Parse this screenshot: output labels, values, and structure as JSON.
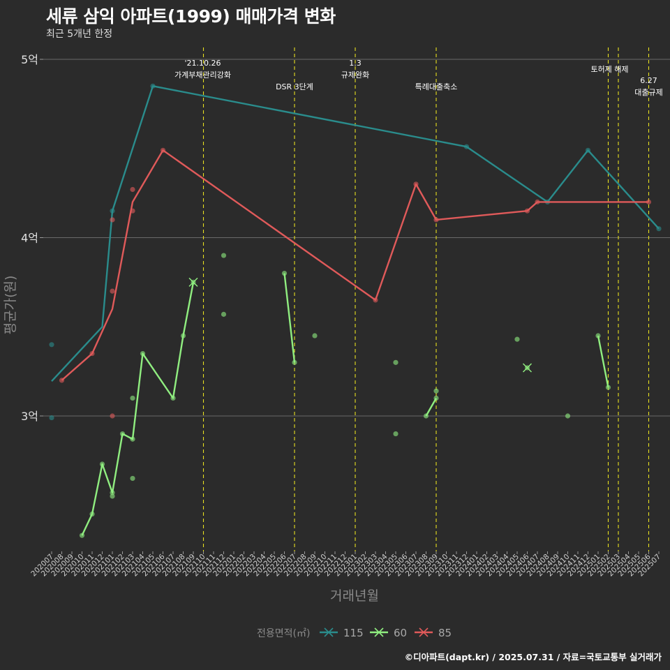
{
  "title": "세류 삼익 아파트(1999) 매매가격 변화",
  "subtitle": "최근 5개년 한정",
  "footer": "©디아파트(dapt.kr) / 2025.07.31 / 자료=국토교통부 실거래가",
  "chart_data": {
    "type": "line",
    "xlabel": "거래년월",
    "ylabel": "평균가(원)",
    "ylim": [
      22000,
      50000
    ],
    "yticks": [
      {
        "value": 30000,
        "label": "3억"
      },
      {
        "value": 40000,
        "label": "4억"
      },
      {
        "value": 50000,
        "label": "5억"
      }
    ],
    "categories": [
      "202007",
      "202008",
      "202009",
      "202010",
      "202011",
      "202012",
      "202101",
      "202102",
      "202103",
      "202104",
      "202105",
      "202106",
      "202107",
      "202108",
      "202109",
      "202110",
      "202111",
      "202112",
      "202201",
      "202202",
      "202203",
      "202204",
      "202205",
      "202206",
      "202207",
      "202208",
      "202209",
      "202210",
      "202211",
      "202212",
      "202301",
      "202302",
      "202303",
      "202304",
      "202305",
      "202306",
      "202307",
      "202308",
      "202309",
      "202310",
      "202311",
      "202312",
      "202401",
      "202402",
      "202403",
      "202404",
      "202405",
      "202406",
      "202407",
      "202408",
      "202409",
      "202410",
      "202411",
      "202412",
      "202501",
      "202502",
      "202503",
      "202504",
      "202505",
      "202506",
      "202507"
    ],
    "legend_title": "전용면적(㎡)",
    "legend_position": "bottom",
    "grid": true,
    "series": [
      {
        "name": "115",
        "color": "#2a8c8c",
        "line": [
          [
            "202007",
            31950
          ],
          [
            "202012",
            35000
          ],
          [
            "202101",
            41500
          ],
          [
            "202105",
            48500
          ],
          [
            "202312",
            45100
          ],
          [
            "202408",
            42000
          ],
          [
            "202412",
            44900
          ],
          [
            "202507",
            40500
          ]
        ],
        "points": [
          [
            "202007",
            34000
          ],
          [
            "202007",
            29900
          ],
          [
            "202101",
            41500
          ],
          [
            "202105",
            48500
          ],
          [
            "202312",
            45100
          ],
          [
            "202408",
            42000
          ],
          [
            "202412",
            44900
          ],
          [
            "202507",
            40500
          ]
        ]
      },
      {
        "name": "60",
        "color": "#90ee80",
        "line": [
          [
            [
              "202010",
              23300
            ],
            [
              "202011",
              24500
            ],
            [
              "202012",
              27300
            ],
            [
              "202101",
              25700
            ],
            [
              "202102",
              29000
            ],
            [
              "202103",
              28700
            ],
            [
              "202104",
              33500
            ],
            [
              "202107",
              31000
            ],
            [
              "202108",
              34500
            ],
            [
              "202109",
              37500
            ]
          ],
          [
            [
              "202206",
              38000
            ],
            [
              "202207",
              33000
            ]
          ],
          [
            [
              "202308",
              30000
            ],
            [
              "202309",
              31000
            ]
          ],
          [
            [
              "202501",
              34500
            ],
            [
              "202502",
              31600
            ]
          ]
        ],
        "points": [
          [
            "202010",
            23300
          ],
          [
            "202011",
            24500
          ],
          [
            "202012",
            27300
          ],
          [
            "202101",
            25700
          ],
          [
            "202101",
            25500
          ],
          [
            "202102",
            29000
          ],
          [
            "202103",
            28700
          ],
          [
            "202103",
            31000
          ],
          [
            "202103",
            26500
          ],
          [
            "202104",
            33500
          ],
          [
            "202107",
            31000
          ],
          [
            "202108",
            34500
          ],
          [
            "202109",
            37500
          ],
          [
            "202112",
            39000
          ],
          [
            "202112",
            35700
          ],
          [
            "202206",
            38000
          ],
          [
            "202207",
            33000
          ],
          [
            "202209",
            34500
          ],
          [
            "202305",
            33000
          ],
          [
            "202305",
            29000
          ],
          [
            "202308",
            30000
          ],
          [
            "202309",
            31000
          ],
          [
            "202309",
            31400
          ],
          [
            "202405",
            34300
          ],
          [
            "202406",
            32700
          ],
          [
            "202410",
            30000
          ],
          [
            "202501",
            34500
          ],
          [
            "202502",
            31600
          ]
        ],
        "markers_x": [
          [
            "202109",
            37500
          ],
          [
            "202406",
            32700
          ]
        ]
      },
      {
        "name": "85",
        "color": "#e05a5a",
        "line": [
          [
            "202008",
            32000
          ],
          [
            "202011",
            33500
          ],
          [
            "202101",
            36000
          ],
          [
            "202103",
            42000
          ],
          [
            "202106",
            44900
          ],
          [
            "202303",
            36500
          ],
          [
            "202307",
            43000
          ],
          [
            "202309",
            41000
          ],
          [
            "202406",
            41500
          ],
          [
            "202407",
            42000
          ],
          [
            "202506",
            42000
          ]
        ],
        "points": [
          [
            "202008",
            32000
          ],
          [
            "202011",
            33500
          ],
          [
            "202101",
            41000
          ],
          [
            "202101",
            37000
          ],
          [
            "202101",
            30000
          ],
          [
            "202103",
            42700
          ],
          [
            "202103",
            41500
          ],
          [
            "202106",
            44900
          ],
          [
            "202303",
            36500
          ],
          [
            "202307",
            43000
          ],
          [
            "202309",
            41000
          ],
          [
            "202406",
            41500
          ],
          [
            "202407",
            42000
          ],
          [
            "202506",
            42000
          ]
        ]
      }
    ],
    "events": [
      {
        "x": "202110",
        "label1": "'21.10.26",
        "label2": "가계부채관리강화"
      },
      {
        "x": "202207",
        "label1": "",
        "label2": "DSR 3단계"
      },
      {
        "x": "202301",
        "label1": "1.3",
        "label2": "규제완화"
      },
      {
        "x": "202309",
        "label1": "",
        "label2": "특례대출축소"
      },
      {
        "x": "202502",
        "label1": "",
        "label2": "토허제 해제"
      },
      {
        "x": "202503",
        "label1": "",
        "label2": ""
      },
      {
        "x": "202506",
        "label1": "6.27",
        "label2": "대출규제"
      }
    ]
  }
}
